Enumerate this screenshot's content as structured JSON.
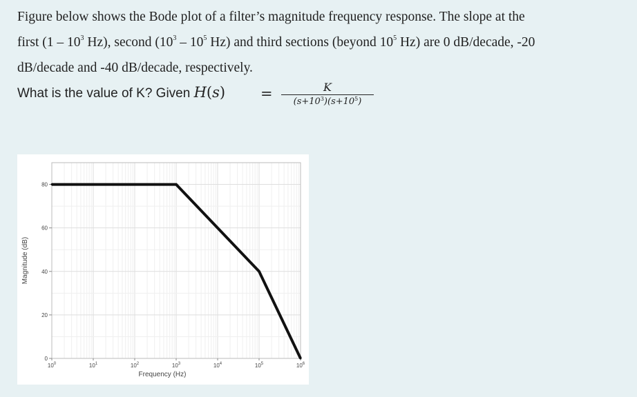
{
  "question": {
    "line1": "Figure below shows the Bode plot of a filter’s magnitude frequency response. The slope at the",
    "line2_a": "first (1 – 10",
    "line2_a_sup": "3",
    "line2_b": " Hz), second (10",
    "line2_b_sup": "3",
    "line2_c": " – 10",
    "line2_c_sup": "5",
    "line2_d": " Hz) and third sections (beyond 10",
    "line2_d_sup": "5",
    "line2_e": " Hz) are 0 dB/decade, -20",
    "line3": "dB/decade and -40 dB/decade, respectively.",
    "ask_text": "What is the value of K? Given",
    "transfer_fn": {
      "lhs_fn": "H",
      "lhs_var": "s",
      "equals": "=",
      "numerator": "K",
      "den_a": "(s+10",
      "den_a_sup": "3",
      "den_b": ")(s+10",
      "den_b_sup": "5",
      "den_c": ")"
    }
  },
  "chart_data": {
    "type": "line",
    "xscale": "log",
    "xlabel": "Frequency (Hz)",
    "ylabel": "Magnitude (dB)",
    "xlim": [
      1,
      1000000
    ],
    "ylim": [
      0,
      90
    ],
    "xticks": [
      {
        "base": "10",
        "exp": "0"
      },
      {
        "base": "10",
        "exp": "1"
      },
      {
        "base": "10",
        "exp": "2"
      },
      {
        "base": "10",
        "exp": "3"
      },
      {
        "base": "10",
        "exp": "4"
      },
      {
        "base": "10",
        "exp": "5"
      },
      {
        "base": "10",
        "exp": "6"
      }
    ],
    "yticks": [
      "0",
      "20",
      "40",
      "60",
      "80"
    ],
    "series": [
      {
        "x": [
          1,
          1000,
          100000,
          1000000
        ],
        "y": [
          80,
          80,
          40,
          0
        ]
      }
    ],
    "grid": true,
    "line_color": "#111111"
  }
}
